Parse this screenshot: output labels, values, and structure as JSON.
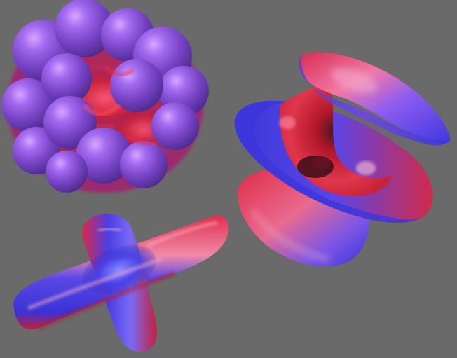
{
  "scene": {
    "background_color": "#6a6a6a",
    "palette": {
      "violet": "#7a45c8",
      "blue": "#4a3fe0",
      "red": "#d0253a",
      "highlight": "#f3c6f0"
    },
    "shapes": [
      {
        "id": "sphere-cluster",
        "color_scheme": "violet-red"
      },
      {
        "id": "hyperboloid-surface",
        "color_scheme": "blue-red"
      },
      {
        "id": "cross-shape",
        "color_scheme": "blue-red"
      }
    ]
  }
}
